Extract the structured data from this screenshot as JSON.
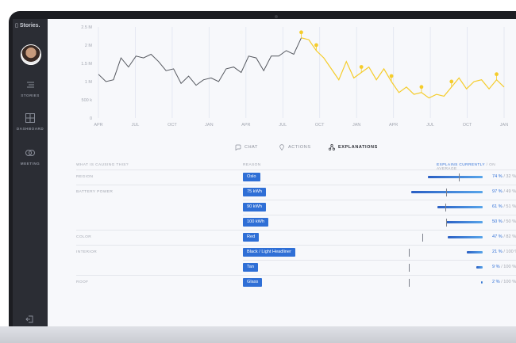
{
  "sidebar": {
    "brand": "Stories.",
    "items": [
      {
        "label": "STORIES",
        "icon": "stories-icon"
      },
      {
        "label": "DASHBOARD",
        "icon": "dashboard-icon"
      },
      {
        "label": "MEETING",
        "icon": "meeting-icon"
      }
    ],
    "logout_icon": "logout-icon"
  },
  "chart_data": {
    "type": "line",
    "y_ticks": [
      "2.5 M",
      "2 M",
      "1.5 M",
      "1 M",
      "500 k",
      "0"
    ],
    "ylim": [
      0,
      2500000
    ],
    "x_ticks": [
      "APR",
      "JUL",
      "OCT",
      "JAN",
      "APR",
      "JUL",
      "OCT",
      "JAN",
      "APR",
      "JUL",
      "OCT",
      "JAN"
    ],
    "series": [
      {
        "color": "#55585f",
        "values": [
          1200000,
          1000000,
          1050000,
          1650000,
          1400000,
          1700000,
          1650000,
          1750000,
          1550000,
          1300000,
          1350000,
          950000,
          1150000,
          900000,
          1050000,
          1100000,
          1000000,
          1350000,
          1400000,
          1250000,
          1700000,
          1650000,
          1300000,
          1700000,
          1700000,
          1850000,
          1750000,
          2200000
        ]
      },
      {
        "color": "#f5cc2b",
        "values": [
          2200000,
          2150000,
          1850000,
          1650000,
          1350000,
          1050000,
          1550000,
          1100000,
          1250000,
          1400000,
          1050000,
          1350000,
          1000000,
          700000,
          850000,
          650000,
          700000,
          550000,
          650000,
          600000,
          850000,
          1100000,
          800000,
          1000000,
          1050000,
          800000,
          1050000,
          850000
        ]
      }
    ],
    "pins": [
      0,
      2,
      8,
      12,
      16,
      20,
      26
    ]
  },
  "tabs": [
    {
      "label": "CHAT",
      "icon": "chat-icon",
      "active": false
    },
    {
      "label": "ACTIONS",
      "icon": "pin-icon",
      "active": false
    },
    {
      "label": "EXPLANATIONS",
      "icon": "network-icon",
      "active": true
    }
  ],
  "table": {
    "header_left": "WHAT IS CAUSING THIS?",
    "header_reason": "REASON",
    "header_current": "EXPLAINS CURRENTLY",
    "header_average": "/ ON AVERAGE",
    "groups": [
      {
        "label": "REGION",
        "rows": [
          {
            "reason": "Oslo",
            "current": 74,
            "average": 32,
            "text": "74 %",
            "avg_text": "/ 32 %"
          }
        ]
      },
      {
        "label": "BATTERY POWER",
        "rows": [
          {
            "reason": "75 kWh",
            "current": 97,
            "average": 49,
            "text": "97 %",
            "avg_text": "/ 49 %"
          },
          {
            "reason": "90 kWh",
            "current": 61,
            "average": 51,
            "text": "61 %",
            "avg_text": "/ 51 %"
          },
          {
            "reason": "100 kWh",
            "current": 50,
            "average": 50,
            "text": "50 %",
            "avg_text": "/ 50 %"
          }
        ]
      },
      {
        "label": "COLOR",
        "rows": [
          {
            "reason": "Red",
            "current": 47,
            "average": 82,
            "text": "47 %",
            "avg_text": "/ 82 %"
          }
        ]
      },
      {
        "label": "INTERIOR",
        "rows": [
          {
            "reason": "Black / Light Headliner",
            "current": 21,
            "average": 100,
            "text": "21 %",
            "avg_text": "/ 100 %"
          },
          {
            "reason": "Tan",
            "current": 9,
            "average": 100,
            "text": "9 %",
            "avg_text": "/ 100 %"
          }
        ]
      },
      {
        "label": "ROOF",
        "rows": [
          {
            "reason": "Glass",
            "current": 2,
            "average": 100,
            "text": "2 %",
            "avg_text": "/ 100 %"
          }
        ]
      }
    ]
  },
  "colors": {
    "accent": "#2f6fd6",
    "highlight": "#f5cc2b",
    "sidebar": "#2b2d34"
  }
}
